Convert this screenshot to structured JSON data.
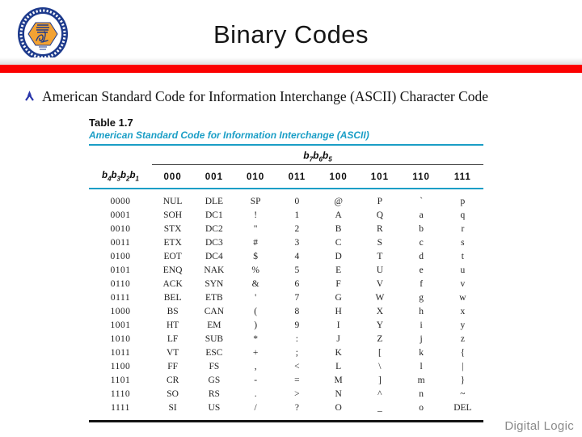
{
  "slide": {
    "title": "Binary Codes",
    "bullet": "American Standard Code for Information Interchange (ASCII) Character Code",
    "footer": "Digital Logic"
  },
  "icons": {
    "bullet": "jack-bullet-icon",
    "logo": "university-seal-logo"
  },
  "colors": {
    "accent_red": "#fb0000",
    "accent_teal": "#1a9ec6",
    "bullet_blue": "#2a36aa",
    "logo_navy": "#1d3a8c",
    "logo_orange": "#f2a233",
    "footer_gray": "#8a8a8a"
  },
  "table": {
    "caption": "Table 1.7",
    "subtitle": "American Standard Code for Information Interchange (ASCII)",
    "bit_group": {
      "p1": "b",
      "s1": "7",
      "p2": "b",
      "s2": "6",
      "p3": "b",
      "s3": "5"
    },
    "row_bits": {
      "p1": "b",
      "s1": "4",
      "p2": "b",
      "s2": "3",
      "p3": "b",
      "s3": "2",
      "p4": "b",
      "s4": "1"
    },
    "col_headers": [
      "000",
      "001",
      "010",
      "011",
      "100",
      "101",
      "110",
      "111"
    ],
    "rows": [
      [
        "0000",
        "NUL",
        "DLE",
        "SP",
        "0",
        "@",
        "P",
        "`",
        "p"
      ],
      [
        "0001",
        "SOH",
        "DC1",
        "!",
        "1",
        "A",
        "Q",
        "a",
        "q"
      ],
      [
        "0010",
        "STX",
        "DC2",
        "\"",
        "2",
        "B",
        "R",
        "b",
        "r"
      ],
      [
        "0011",
        "ETX",
        "DC3",
        "#",
        "3",
        "C",
        "S",
        "c",
        "s"
      ],
      [
        "0100",
        "EOT",
        "DC4",
        "$",
        "4",
        "D",
        "T",
        "d",
        "t"
      ],
      [
        "0101",
        "ENQ",
        "NAK",
        "%",
        "5",
        "E",
        "U",
        "e",
        "u"
      ],
      [
        "0110",
        "ACK",
        "SYN",
        "&",
        "6",
        "F",
        "V",
        "f",
        "v"
      ],
      [
        "0111",
        "BEL",
        "ETB",
        "'",
        "7",
        "G",
        "W",
        "g",
        "w"
      ],
      [
        "1000",
        "BS",
        "CAN",
        "(",
        "8",
        "H",
        "X",
        "h",
        "x"
      ],
      [
        "1001",
        "HT",
        "EM",
        ")",
        "9",
        "I",
        "Y",
        "i",
        "y"
      ],
      [
        "1010",
        "LF",
        "SUB",
        "*",
        ":",
        "J",
        "Z",
        "j",
        "z"
      ],
      [
        "1011",
        "VT",
        "ESC",
        "+",
        ";",
        "K",
        "[",
        "k",
        "{"
      ],
      [
        "1100",
        "FF",
        "FS",
        ",",
        "<",
        "L",
        "\\",
        "l",
        "|"
      ],
      [
        "1101",
        "CR",
        "GS",
        "-",
        "=",
        "M",
        "]",
        "m",
        "}"
      ],
      [
        "1110",
        "SO",
        "RS",
        ".",
        ">",
        "N",
        "^",
        "n",
        "~"
      ],
      [
        "1111",
        "SI",
        "US",
        "/",
        "?",
        "O",
        "_",
        "o",
        "DEL"
      ]
    ]
  }
}
